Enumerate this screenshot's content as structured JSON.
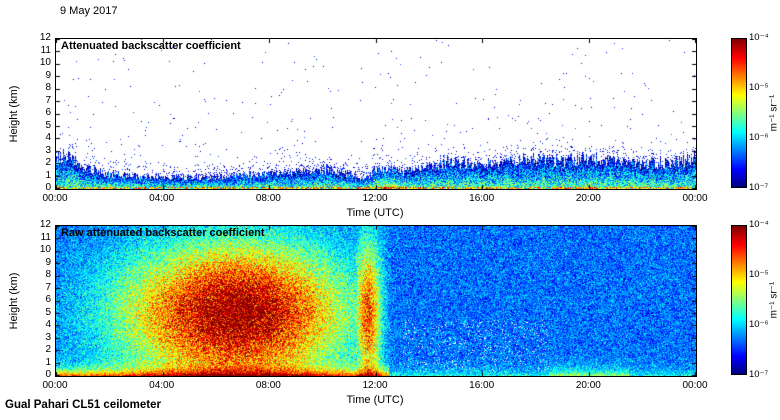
{
  "date_label": "9 May 2017",
  "footer_label": "Gual Pahari CL51 ceilometer",
  "colors": {
    "background": "#ffffff",
    "axis": "#000000",
    "jet_gradient_stops": [
      "#000080 0%",
      "#0000ff 12%",
      "#00ffff 37%",
      "#ffff00 62%",
      "#ff0000 87%",
      "#800000 100%"
    ]
  },
  "chart_data": [
    {
      "type": "heatmap",
      "title": "Attenuated backscatter coefficient",
      "xlabel": "Time (UTC)",
      "ylabel": "Height (km)",
      "x_ticks": [
        "00:00",
        "04:00",
        "08:00",
        "12:00",
        "16:00",
        "20:00",
        "00:00"
      ],
      "xlim_hours": [
        0,
        24
      ],
      "y_ticks": [
        0,
        1,
        2,
        3,
        4,
        5,
        6,
        7,
        8,
        9,
        10,
        11,
        12
      ],
      "ylim_km": [
        0,
        12
      ],
      "grid": false,
      "colorbar": {
        "label": "m⁻¹ sr⁻¹",
        "ticks": [
          "10⁻⁴",
          "10⁻⁵",
          "10⁻⁶",
          "10⁻⁷"
        ],
        "scale": "log10",
        "clim": [
          1e-07,
          0.0001
        ],
        "colormap": "jet"
      },
      "render": {
        "mode": "boundary-layer",
        "seed": 20170509,
        "background": "#ffffff",
        "layer_top_km": [
          [
            0,
            2.3
          ],
          [
            0.5,
            2.7
          ],
          [
            1,
            1.6
          ],
          [
            2,
            1.1
          ],
          [
            3,
            0.95
          ],
          [
            4,
            0.9
          ],
          [
            5,
            0.85
          ],
          [
            6,
            0.9
          ],
          [
            7,
            1.0
          ],
          [
            8,
            1.15
          ],
          [
            9,
            1.3
          ],
          [
            10,
            1.4
          ],
          [
            11,
            1.1
          ],
          [
            11.5,
            0.65
          ],
          [
            12,
            1.35
          ],
          [
            12.5,
            1.6
          ],
          [
            13,
            1.25
          ],
          [
            14,
            1.7
          ],
          [
            15,
            2.0
          ],
          [
            16,
            1.75
          ],
          [
            17,
            2.1
          ],
          [
            18,
            2.3
          ],
          [
            19,
            2.2
          ],
          [
            20,
            2.3
          ],
          [
            21,
            2.1
          ],
          [
            22,
            1.9
          ],
          [
            23,
            2.0
          ],
          [
            24,
            2.4
          ]
        ]
      }
    },
    {
      "type": "heatmap",
      "title": "Raw attenuated backscatter coefficient",
      "xlabel": "Time (UTC)",
      "ylabel": "Height (km)",
      "x_ticks": [
        "00:00",
        "04:00",
        "08:00",
        "12:00",
        "16:00",
        "20:00",
        "00:00"
      ],
      "xlim_hours": [
        0,
        24
      ],
      "y_ticks": [
        0,
        1,
        2,
        3,
        4,
        5,
        6,
        7,
        8,
        9,
        10,
        11,
        12
      ],
      "ylim_km": [
        0,
        12
      ],
      "grid": false,
      "colorbar": {
        "label": "m⁻¹ sr⁻¹",
        "ticks": [
          "10⁻⁴",
          "10⁻⁵",
          "10⁻⁶",
          "10⁻⁷"
        ],
        "scale": "log10",
        "clim": [
          1e-07,
          0.0001
        ],
        "colormap": "jet"
      },
      "render": {
        "mode": "raw",
        "seed": 170509,
        "hot_region": {
          "t_center": 6.8,
          "t_sigma_early": 4.2,
          "t_sigma_mid": 4.0,
          "t_sigma_late": 1.0,
          "h_center": 5.0,
          "h_sigma": 5.5,
          "amplitude": 3.0
        },
        "noon_plume": {
          "t_center": 11.7,
          "t_sigma": 0.5,
          "amplitude": 2.2
        },
        "boundary_layer": {
          "amp_morning": 1.5,
          "amp_evening": 0.9,
          "amp_other": 0.45
        }
      }
    }
  ]
}
